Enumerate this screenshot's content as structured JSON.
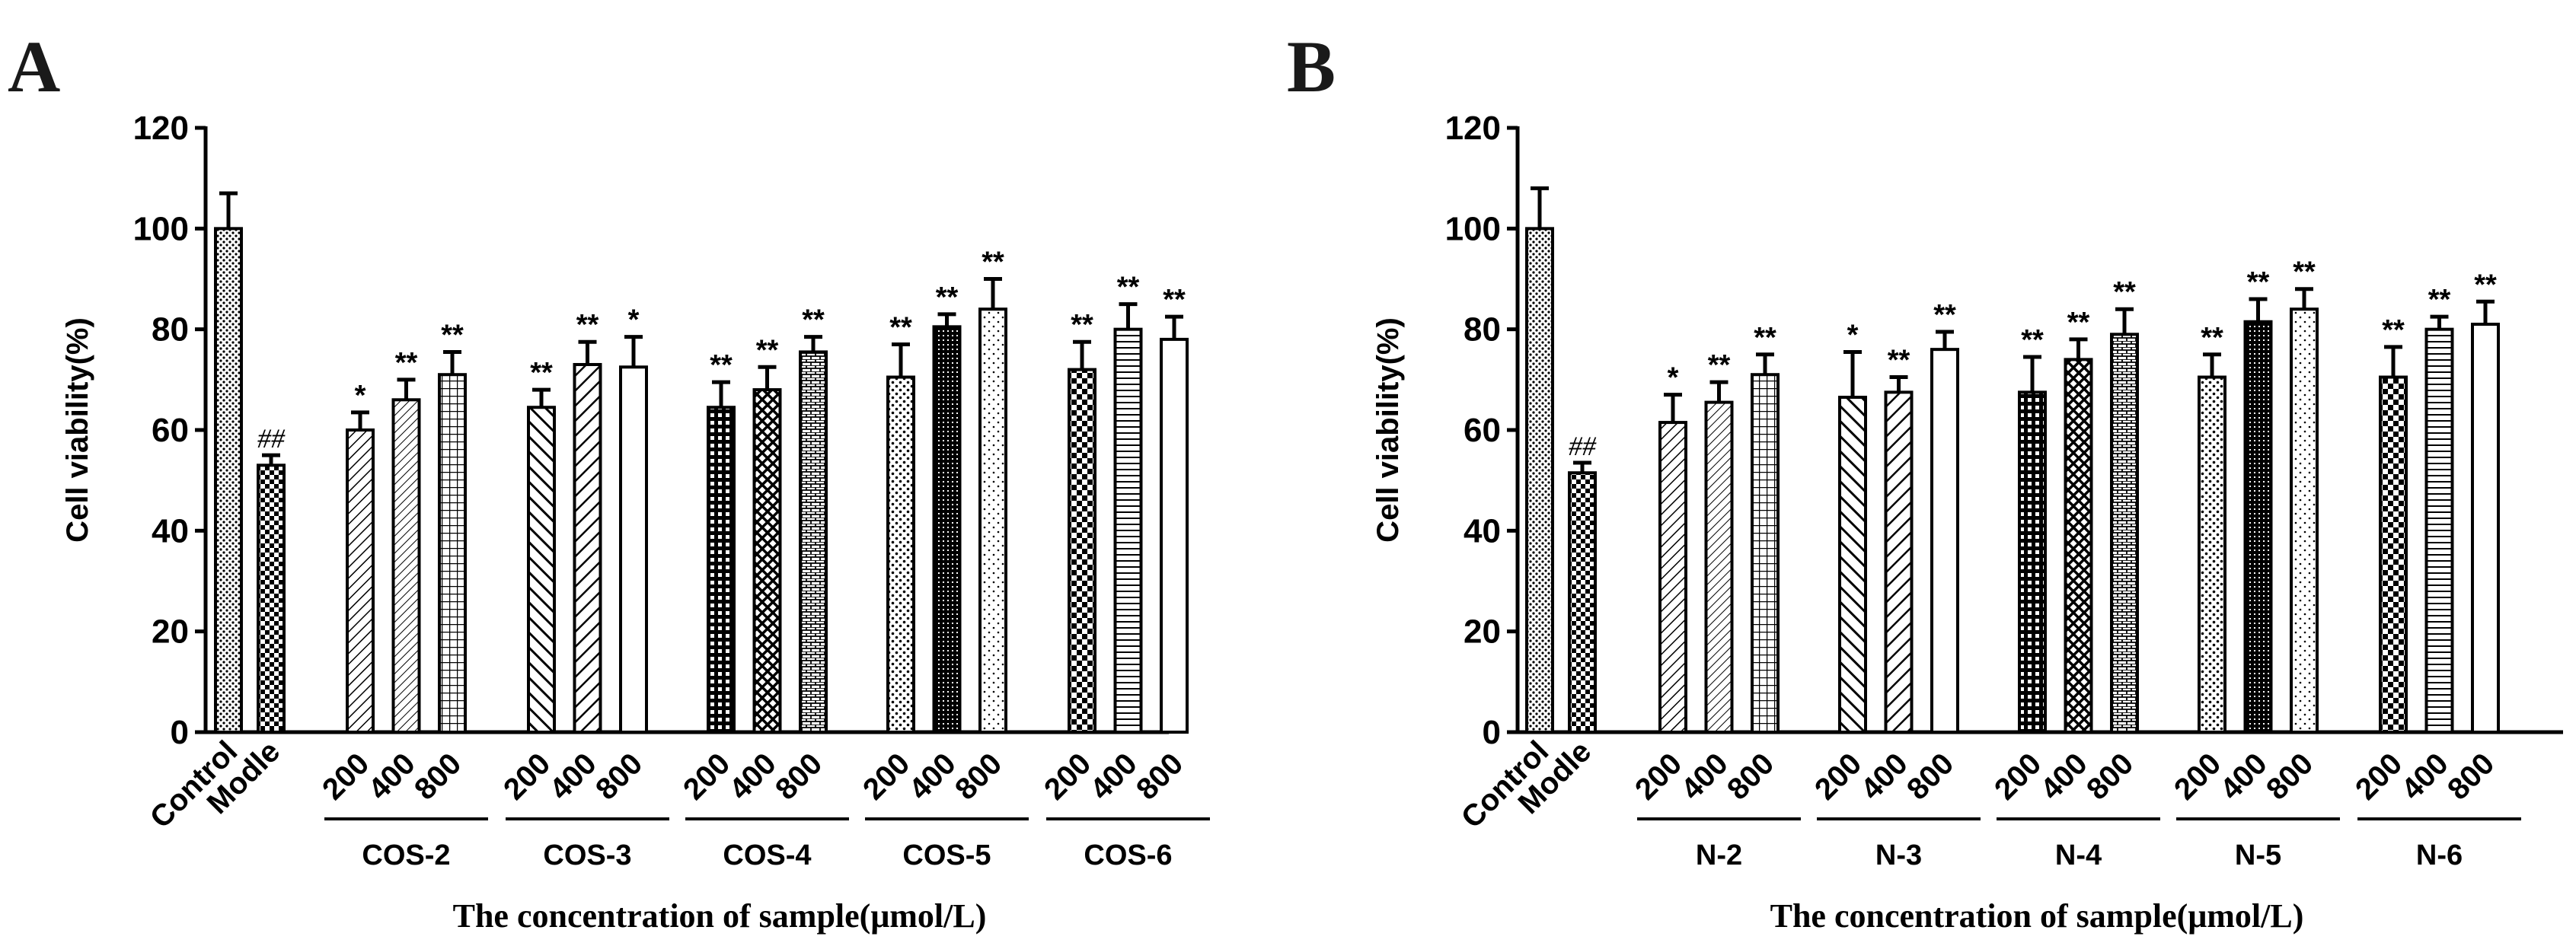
{
  "chart_data": [
    {
      "type": "bar",
      "panel_label": "A",
      "ylabel": "Cell viability(%)",
      "xlabel": "The concentration of sample(μmol/L)",
      "ylim": [
        0,
        120
      ],
      "yticks": [
        "0",
        "20",
        "40",
        "60",
        "80",
        "100",
        "120"
      ],
      "bars": [
        {
          "label": "Control",
          "group": "",
          "value": 100,
          "error": 7,
          "sig": "",
          "pattern": "pat-dots"
        },
        {
          "label": "Modle",
          "group": "",
          "value": 53,
          "error": 2,
          "sig": "##",
          "pattern": "pat-check"
        },
        {
          "label": "200",
          "group": "COS-2",
          "value": 60,
          "error": 3.5,
          "sig": "*",
          "pattern": "pat-diag"
        },
        {
          "label": "400",
          "group": "COS-2",
          "value": 66,
          "error": 4,
          "sig": "**",
          "pattern": "pat-diag2"
        },
        {
          "label": "800",
          "group": "COS-2",
          "value": 71,
          "error": 4.5,
          "sig": "**",
          "pattern": "pat-grid"
        },
        {
          "label": "200",
          "group": "COS-3",
          "value": 64.5,
          "error": 3.5,
          "sig": "**",
          "pattern": "pat-bs"
        },
        {
          "label": "400",
          "group": "COS-3",
          "value": 73,
          "error": 4.5,
          "sig": "**",
          "pattern": "pat-diagw"
        },
        {
          "label": "800",
          "group": "COS-3",
          "value": 72.5,
          "error": 6,
          "sig": "*",
          "pattern": "pat-white"
        },
        {
          "label": "200",
          "group": "COS-4",
          "value": 64.5,
          "error": 5,
          "sig": "**",
          "pattern": "pat-grid2"
        },
        {
          "label": "400",
          "group": "COS-4",
          "value": 68,
          "error": 4.5,
          "sig": "**",
          "pattern": "pat-xhatch"
        },
        {
          "label": "800",
          "group": "COS-4",
          "value": 75.5,
          "error": 3,
          "sig": "**",
          "pattern": "pat-brick"
        },
        {
          "label": "200",
          "group": "COS-5",
          "value": 70.5,
          "error": 6.5,
          "sig": "**",
          "pattern": "pat-dots2"
        },
        {
          "label": "400",
          "group": "COS-5",
          "value": 80.5,
          "error": 2.5,
          "sig": "**",
          "pattern": "pat-dense"
        },
        {
          "label": "800",
          "group": "COS-5",
          "value": 84,
          "error": 6,
          "sig": "**",
          "pattern": "pat-sparse"
        },
        {
          "label": "200",
          "group": "COS-6",
          "value": 72,
          "error": 5.5,
          "sig": "**",
          "pattern": "pat-check2"
        },
        {
          "label": "400",
          "group": "COS-6",
          "value": 80,
          "error": 5,
          "sig": "**",
          "pattern": "pat-hlines"
        },
        {
          "label": "800",
          "group": "COS-6",
          "value": 78,
          "error": 4.5,
          "sig": "**",
          "pattern": "pat-white"
        }
      ],
      "groups": [
        "COS-2",
        "COS-3",
        "COS-4",
        "COS-5",
        "COS-6"
      ]
    },
    {
      "type": "bar",
      "panel_label": "B",
      "ylabel": "Cell viability(%)",
      "xlabel": "The concentration of sample(μmol/L)",
      "ylim": [
        0,
        120
      ],
      "yticks": [
        "0",
        "20",
        "40",
        "60",
        "80",
        "100",
        "120"
      ],
      "bars": [
        {
          "label": "Control",
          "group": "",
          "value": 100,
          "error": 8,
          "sig": "",
          "pattern": "pat-dots"
        },
        {
          "label": "Modle",
          "group": "",
          "value": 51.5,
          "error": 2,
          "sig": "##",
          "pattern": "pat-check"
        },
        {
          "label": "200",
          "group": "N-2",
          "value": 61.5,
          "error": 5.5,
          "sig": "*",
          "pattern": "pat-diag"
        },
        {
          "label": "400",
          "group": "N-2",
          "value": 65.5,
          "error": 4,
          "sig": "**",
          "pattern": "pat-diag2"
        },
        {
          "label": "800",
          "group": "N-2",
          "value": 71,
          "error": 4,
          "sig": "**",
          "pattern": "pat-grid"
        },
        {
          "label": "200",
          "group": "N-3",
          "value": 66.5,
          "error": 9,
          "sig": "*",
          "pattern": "pat-bs"
        },
        {
          "label": "400",
          "group": "N-3",
          "value": 67.5,
          "error": 3,
          "sig": "**",
          "pattern": "pat-diagw"
        },
        {
          "label": "800",
          "group": "N-3",
          "value": 76,
          "error": 3.5,
          "sig": "**",
          "pattern": "pat-white"
        },
        {
          "label": "200",
          "group": "N-4",
          "value": 67.5,
          "error": 7,
          "sig": "**",
          "pattern": "pat-grid2"
        },
        {
          "label": "400",
          "group": "N-4",
          "value": 74,
          "error": 4,
          "sig": "**",
          "pattern": "pat-xhatch"
        },
        {
          "label": "800",
          "group": "N-4",
          "value": 79,
          "error": 5,
          "sig": "**",
          "pattern": "pat-brick"
        },
        {
          "label": "200",
          "group": "N-5",
          "value": 70.5,
          "error": 4.5,
          "sig": "**",
          "pattern": "pat-dots2"
        },
        {
          "label": "400",
          "group": "N-5",
          "value": 81.5,
          "error": 4.5,
          "sig": "**",
          "pattern": "pat-dense"
        },
        {
          "label": "800",
          "group": "N-5",
          "value": 84,
          "error": 4,
          "sig": "**",
          "pattern": "pat-sparse"
        },
        {
          "label": "200",
          "group": "N-6",
          "value": 70.5,
          "error": 6,
          "sig": "**",
          "pattern": "pat-check2"
        },
        {
          "label": "400",
          "group": "N-6",
          "value": 80,
          "error": 2.5,
          "sig": "**",
          "pattern": "pat-hlines"
        },
        {
          "label": "800",
          "group": "N-6",
          "value": 81,
          "error": 4.5,
          "sig": "**",
          "pattern": "pat-white"
        }
      ],
      "groups": [
        "N-2",
        "N-3",
        "N-4",
        "N-5",
        "N-6"
      ]
    }
  ]
}
